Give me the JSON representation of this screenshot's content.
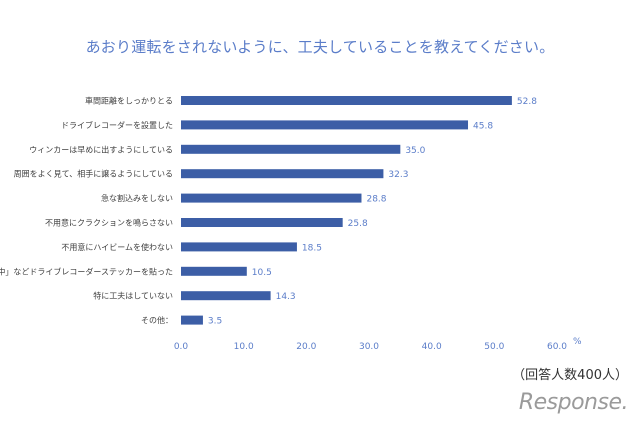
{
  "chart_data": {
    "type": "bar",
    "orientation": "horizontal",
    "title": "あおり運転をされないように、工夫していることを教えてください。",
    "categories": [
      "車間距離をしっかりとる",
      "ドライブレコーダーを設置した",
      "ウィンカーは早めに出すようにしている",
      "周囲をよく見て、相手に譲るようにしている",
      "急な割込みをしない",
      "不用意にクラクションを鳴らさない",
      "不用意にハイビームを使わない",
      "「録画中」などドライブレコーダーステッカーを貼った",
      "特に工夫はしていない",
      "その他："
    ],
    "values": [
      52.8,
      45.8,
      35.0,
      32.3,
      28.8,
      25.8,
      18.5,
      10.5,
      14.3,
      3.5
    ],
    "value_labels": [
      "52.8",
      "45.8",
      "35.0",
      "32.3",
      "28.8",
      "25.8",
      "18.5",
      "10.5",
      "14.3",
      "3.5"
    ],
    "x_ticks": [
      "0.0",
      "10.0",
      "20.0",
      "30.0",
      "40.0",
      "50.0",
      "60.0"
    ],
    "xlim": [
      0,
      60
    ],
    "unit": "%",
    "grid": false,
    "bar_color": "#3c5ea6"
  },
  "note": "（回答人数400人）",
  "logo_text": "Response."
}
